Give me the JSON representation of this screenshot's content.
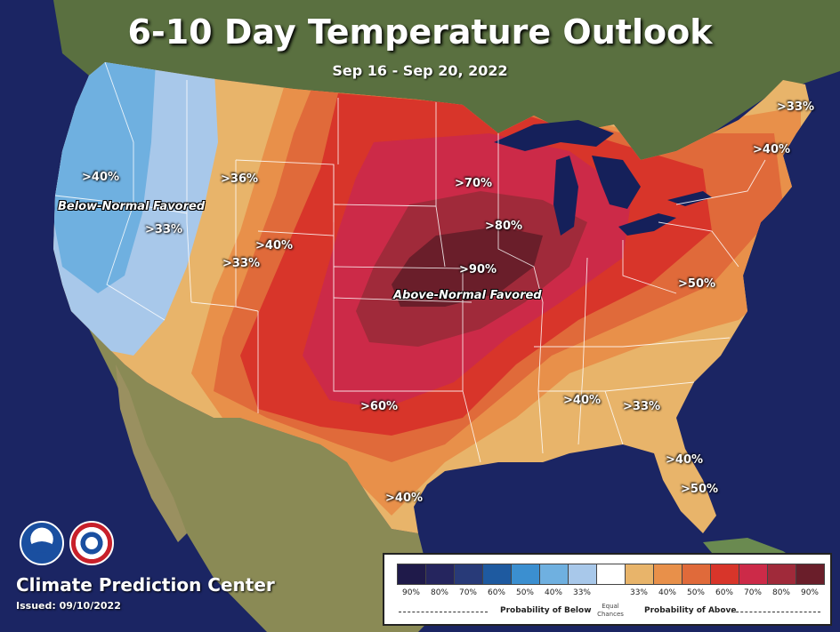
{
  "title": "6-10 Day Temperature Outlook",
  "subtitle": "Sep 16 - Sep 20, 2022",
  "probability_labels": {
    "below_40": ">40%",
    "below_33": ">33%",
    "below_36": ">36%",
    "west_40": ">40%",
    "west_33": ">33%",
    "plains_70": ">70%",
    "plains_80": ">80%",
    "plains_90": ">90%",
    "south_60": ">60%",
    "texas_40": ">40%",
    "maine_33": ">33%",
    "ne_40": ">40%",
    "va_50": ">50%",
    "se_40": ">40%",
    "ga_33": ">33%",
    "fl_40": ">40%",
    "fl_50": ">50%"
  },
  "regions": {
    "below_normal": "Below-Normal Favored",
    "above_normal": "Above-Normal Favored"
  },
  "footer": {
    "center_name": "Climate Prediction Center",
    "issued": "Issued: 09/10/2022",
    "noaa_logo": "noaa-logo",
    "nws_logo": "nws-logo"
  },
  "legend": {
    "below_colors": [
      "#1f1a4a",
      "#25255e",
      "#283a78",
      "#1e5aa0",
      "#3b8fd0",
      "#6fb0e0",
      "#a8c8ea"
    ],
    "center_color": "#ffffff",
    "above_colors": [
      "#e8b46a",
      "#e8904a",
      "#e06a3a",
      "#d8352a",
      "#cc2a48",
      "#a02a3a",
      "#6a1e2a"
    ],
    "ticks": [
      "90%",
      "80%",
      "70%",
      "60%",
      "50%",
      "40%",
      "33%",
      "",
      "33%",
      "40%",
      "50%",
      "60%",
      "70%",
      "80%",
      "90%"
    ],
    "probability_below": "Probability of Below",
    "equal_chances": "Equal Chances",
    "probability_above": "Probability of Above"
  },
  "map_colors": {
    "ocean": "#1b2563",
    "land": "#7a8a4a",
    "below_33": "#a8c8ea",
    "below_40": "#6fb0e0",
    "above_33": "#e8b46a",
    "above_40": "#e8904a",
    "above_50": "#e06a3a",
    "above_60": "#d8352a",
    "above_70": "#cc2a48",
    "above_80": "#a02a3a",
    "above_90": "#6a1e2a",
    "lakes": "#15205a"
  }
}
